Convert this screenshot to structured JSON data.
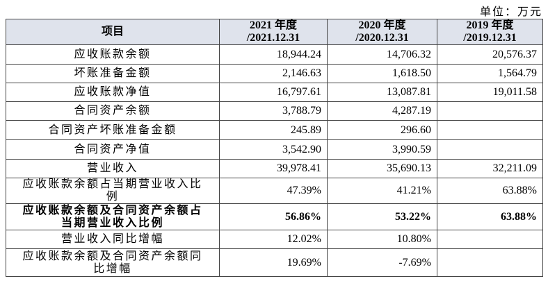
{
  "unit": "单位：万元",
  "table": {
    "header": [
      "项目",
      [
        "2021 年度",
        "/2021.12.31"
      ],
      [
        "2020 年度",
        "/2020.12.31"
      ],
      [
        "2019 年度",
        "/2019.12.31"
      ]
    ],
    "rows": [
      [
        "应收账款余额",
        "18,944.24",
        "14,706.32",
        "20,576.37"
      ],
      [
        "坏账准备金额",
        "2,146.63",
        "1,618.50",
        "1,564.79"
      ],
      [
        "应收账款净值",
        "16,797.61",
        "13,087.81",
        "19,011.58"
      ],
      [
        "合同资产余额",
        "3,788.79",
        "4,287.19",
        ""
      ],
      [
        "合同资产坏账准备金额",
        "245.89",
        "296.60",
        ""
      ],
      [
        "合同资产净值",
        "3,542.90",
        "3,990.59",
        ""
      ],
      [
        "营业收入",
        "39,978.41",
        "35,690.13",
        "32,211.09"
      ],
      [
        [
          "应收账款余额占当期营业收入比",
          "例"
        ],
        "47.39%",
        "41.21%",
        "63.88%"
      ],
      [
        [
          "应收账款余额及合同资产余额占",
          "当期营业收入比例"
        ],
        "56.86%",
        "53.22%",
        "63.88%"
      ],
      [
        "营业收入同比增幅",
        "12.02%",
        "10.80%",
        ""
      ],
      [
        [
          "应收账款余额及合同资产余额同",
          "比增幅"
        ],
        "19.69%",
        "-7.69%",
        ""
      ]
    ]
  }
}
